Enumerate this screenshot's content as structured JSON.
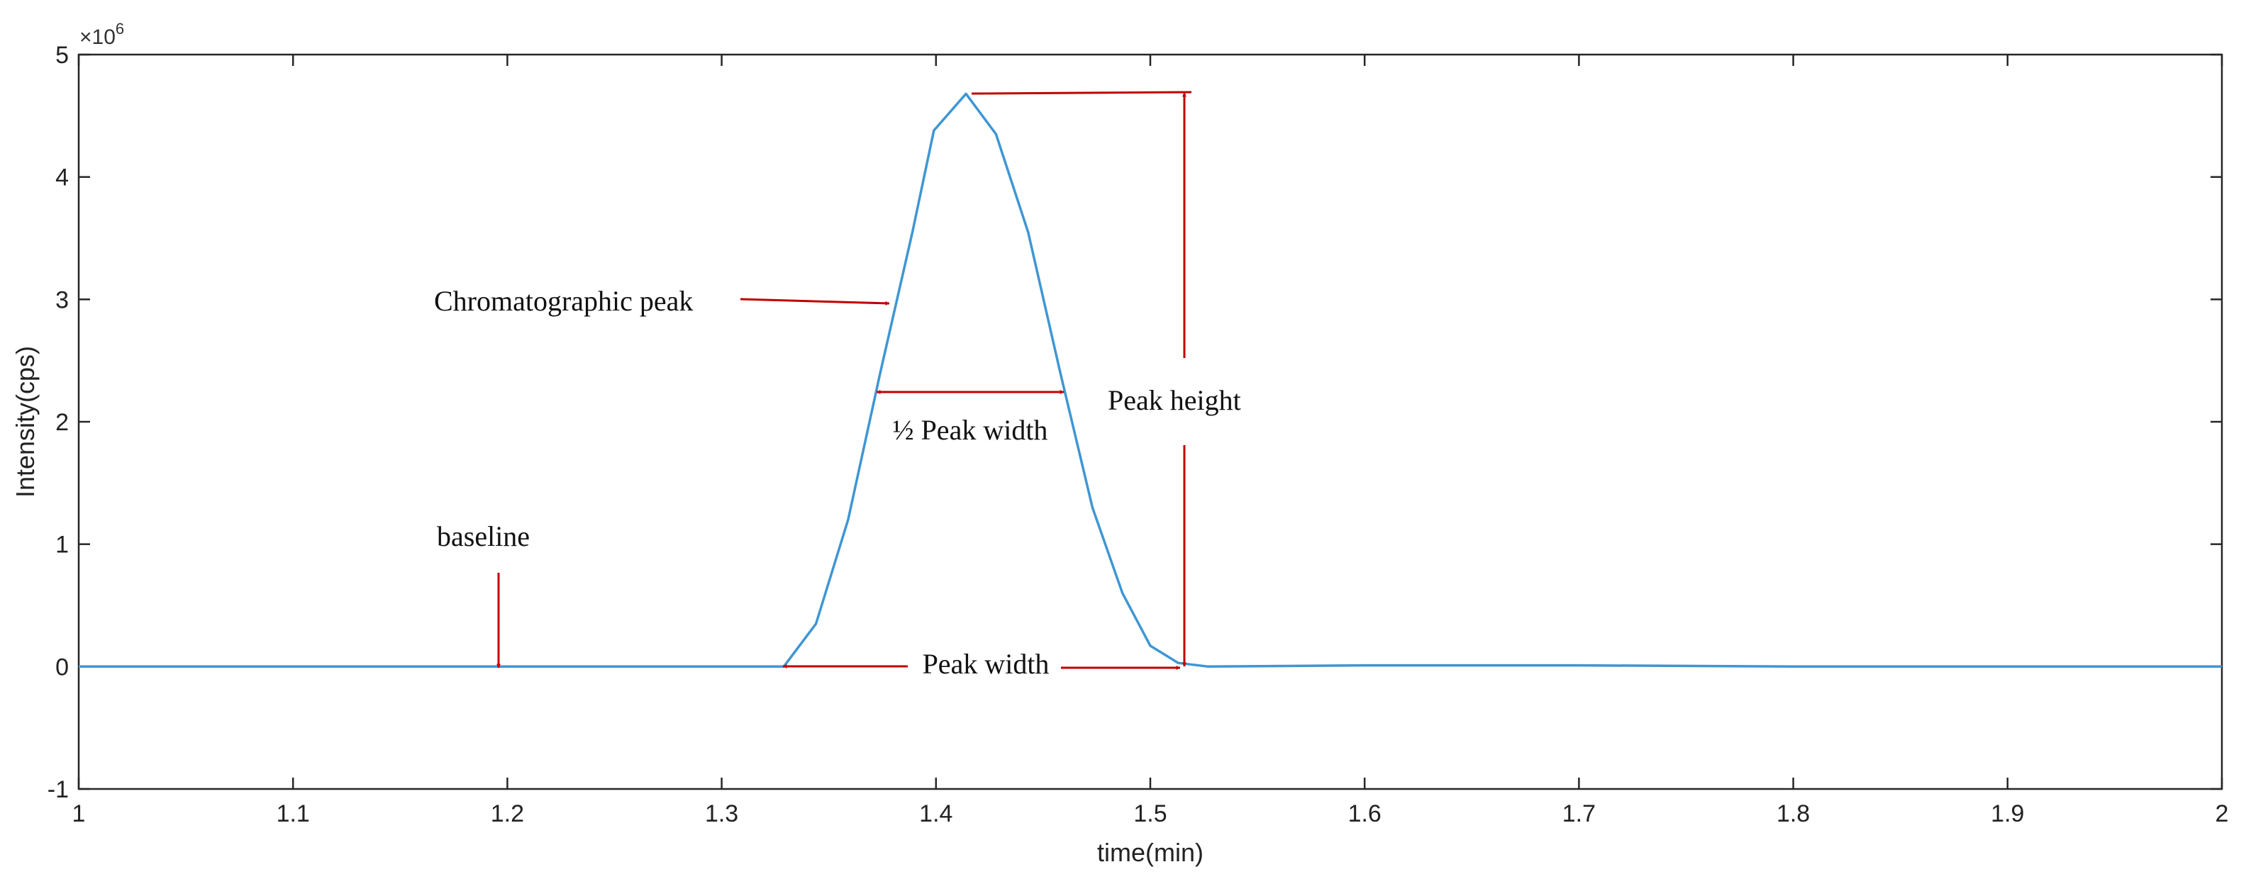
{
  "chart_data": {
    "type": "line",
    "xlabel": "time(min)",
    "ylabel": "Intensity(cps)",
    "y_exponent_label": "×10",
    "y_exponent_power": "6",
    "xlim": [
      1,
      2
    ],
    "ylim": [
      -1,
      5
    ],
    "x_ticks": [
      "1",
      "1.1",
      "1.2",
      "1.3",
      "1.4",
      "1.5",
      "1.6",
      "1.7",
      "1.8",
      "1.9",
      "2"
    ],
    "y_ticks": [
      "-1",
      "0",
      "1",
      "2",
      "3",
      "4",
      "5"
    ],
    "grid": false,
    "line_color": "#3f96d3",
    "annotation_color": "#c00000",
    "series": [
      {
        "x": [
          1.0,
          1.1,
          1.2,
          1.3,
          1.329,
          1.344,
          1.359,
          1.374,
          1.389,
          1.399,
          1.414,
          1.428,
          1.443,
          1.458,
          1.473,
          1.487,
          1.5,
          1.513,
          1.527,
          1.6,
          1.7,
          1.8,
          1.9,
          2.0
        ],
        "y": [
          0.0,
          0.0,
          0.0,
          0.0,
          0.0,
          0.35,
          1.2,
          2.4,
          3.55,
          4.38,
          4.68,
          4.35,
          3.55,
          2.4,
          1.3,
          0.6,
          0.17,
          0.03,
          0.0,
          0.01,
          0.01,
          0.0,
          0.0,
          0.0
        ]
      }
    ],
    "annotations": {
      "chromatographic_peak": "Chromatographic peak",
      "half_peak_width": "½ Peak width",
      "peak_height": "Peak height",
      "baseline": "baseline",
      "peak_width": "Peak width"
    }
  }
}
